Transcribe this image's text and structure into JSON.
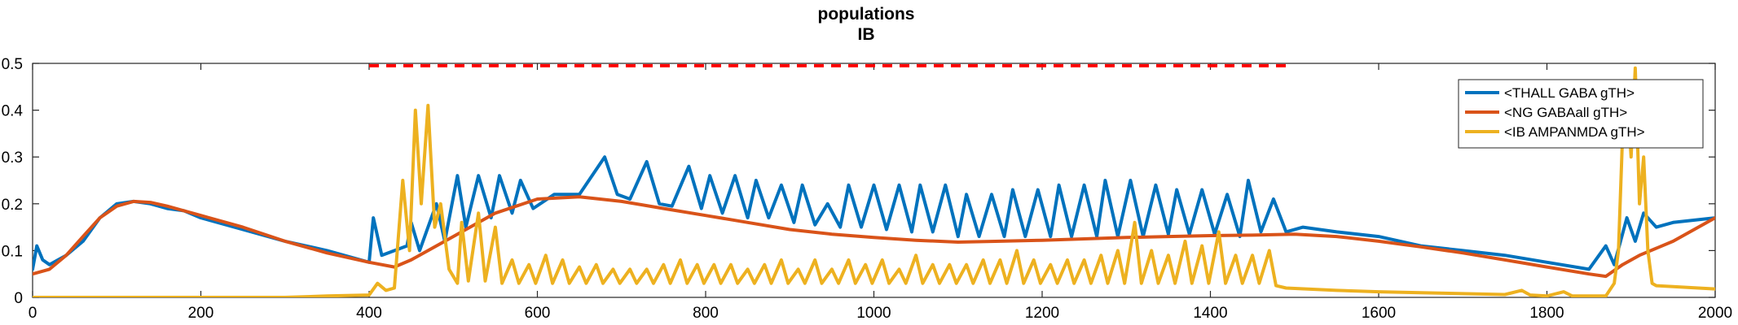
{
  "chart_data": {
    "type": "line",
    "title_lines": [
      "populations",
      "IB"
    ],
    "xlabel": "",
    "ylabel": "",
    "xlim": [
      0,
      2000
    ],
    "ylim": [
      0,
      0.5
    ],
    "xticks": [
      "0",
      "200",
      "400",
      "600",
      "800",
      "1000",
      "1200",
      "1400",
      "1600",
      "1800",
      "2000"
    ],
    "yticks": [
      "0",
      "0.1",
      "0.2",
      "0.3",
      "0.4",
      "0.5"
    ],
    "grid": false,
    "legend_position": "top-right",
    "stimulus_marker": {
      "x": [
        400,
        1490
      ],
      "y": 0.495,
      "color": "#ff0000",
      "style": "dashed"
    },
    "series": [
      {
        "name": "<THALL GABA gTH>",
        "color": "#0072bd",
        "points": [
          [
            0,
            0.06
          ],
          [
            5,
            0.11
          ],
          [
            12,
            0.08
          ],
          [
            20,
            0.07
          ],
          [
            40,
            0.09
          ],
          [
            60,
            0.12
          ],
          [
            80,
            0.17
          ],
          [
            100,
            0.2
          ],
          [
            120,
            0.205
          ],
          [
            140,
            0.2
          ],
          [
            160,
            0.19
          ],
          [
            180,
            0.185
          ],
          [
            200,
            0.17
          ],
          [
            250,
            0.145
          ],
          [
            300,
            0.12
          ],
          [
            350,
            0.1
          ],
          [
            400,
            0.075
          ],
          [
            405,
            0.17
          ],
          [
            415,
            0.09
          ],
          [
            445,
            0.11
          ],
          [
            450,
            0.16
          ],
          [
            460,
            0.1
          ],
          [
            480,
            0.2
          ],
          [
            490,
            0.12
          ],
          [
            505,
            0.26
          ],
          [
            515,
            0.15
          ],
          [
            530,
            0.26
          ],
          [
            545,
            0.17
          ],
          [
            555,
            0.26
          ],
          [
            570,
            0.18
          ],
          [
            580,
            0.25
          ],
          [
            595,
            0.19
          ],
          [
            620,
            0.22
          ],
          [
            650,
            0.22
          ],
          [
            680,
            0.3
          ],
          [
            695,
            0.22
          ],
          [
            710,
            0.21
          ],
          [
            730,
            0.29
          ],
          [
            745,
            0.2
          ],
          [
            760,
            0.195
          ],
          [
            780,
            0.28
          ],
          [
            795,
            0.19
          ],
          [
            805,
            0.26
          ],
          [
            820,
            0.18
          ],
          [
            835,
            0.26
          ],
          [
            850,
            0.17
          ],
          [
            860,
            0.25
          ],
          [
            875,
            0.17
          ],
          [
            890,
            0.24
          ],
          [
            905,
            0.16
          ],
          [
            915,
            0.24
          ],
          [
            930,
            0.155
          ],
          [
            945,
            0.2
          ],
          [
            960,
            0.15
          ],
          [
            970,
            0.24
          ],
          [
            985,
            0.15
          ],
          [
            1000,
            0.24
          ],
          [
            1015,
            0.145
          ],
          [
            1030,
            0.24
          ],
          [
            1045,
            0.14
          ],
          [
            1055,
            0.24
          ],
          [
            1070,
            0.14
          ],
          [
            1085,
            0.24
          ],
          [
            1100,
            0.13
          ],
          [
            1110,
            0.22
          ],
          [
            1125,
            0.13
          ],
          [
            1140,
            0.22
          ],
          [
            1155,
            0.13
          ],
          [
            1165,
            0.23
          ],
          [
            1180,
            0.13
          ],
          [
            1195,
            0.23
          ],
          [
            1210,
            0.13
          ],
          [
            1220,
            0.24
          ],
          [
            1235,
            0.13
          ],
          [
            1250,
            0.24
          ],
          [
            1265,
            0.13
          ],
          [
            1275,
            0.25
          ],
          [
            1290,
            0.13
          ],
          [
            1305,
            0.25
          ],
          [
            1320,
            0.13
          ],
          [
            1335,
            0.24
          ],
          [
            1350,
            0.135
          ],
          [
            1360,
            0.23
          ],
          [
            1375,
            0.135
          ],
          [
            1390,
            0.23
          ],
          [
            1405,
            0.135
          ],
          [
            1420,
            0.22
          ],
          [
            1435,
            0.13
          ],
          [
            1445,
            0.25
          ],
          [
            1460,
            0.14
          ],
          [
            1475,
            0.21
          ],
          [
            1490,
            0.14
          ],
          [
            1510,
            0.15
          ],
          [
            1550,
            0.14
          ],
          [
            1600,
            0.13
          ],
          [
            1650,
            0.11
          ],
          [
            1700,
            0.1
          ],
          [
            1750,
            0.09
          ],
          [
            1800,
            0.075
          ],
          [
            1850,
            0.06
          ],
          [
            1870,
            0.11
          ],
          [
            1880,
            0.07
          ],
          [
            1895,
            0.17
          ],
          [
            1905,
            0.12
          ],
          [
            1915,
            0.18
          ],
          [
            1930,
            0.15
          ],
          [
            1950,
            0.16
          ],
          [
            2000,
            0.17
          ]
        ]
      },
      {
        "name": "<NG GABAall gTH>",
        "color": "#d95319",
        "points": [
          [
            0,
            0.05
          ],
          [
            20,
            0.06
          ],
          [
            40,
            0.09
          ],
          [
            60,
            0.13
          ],
          [
            80,
            0.17
          ],
          [
            100,
            0.195
          ],
          [
            120,
            0.205
          ],
          [
            140,
            0.203
          ],
          [
            160,
            0.195
          ],
          [
            200,
            0.175
          ],
          [
            250,
            0.15
          ],
          [
            300,
            0.12
          ],
          [
            350,
            0.095
          ],
          [
            400,
            0.075
          ],
          [
            430,
            0.065
          ],
          [
            450,
            0.08
          ],
          [
            470,
            0.1
          ],
          [
            500,
            0.13
          ],
          [
            550,
            0.18
          ],
          [
            600,
            0.21
          ],
          [
            650,
            0.215
          ],
          [
            700,
            0.205
          ],
          [
            750,
            0.19
          ],
          [
            800,
            0.175
          ],
          [
            850,
            0.16
          ],
          [
            900,
            0.145
          ],
          [
            950,
            0.135
          ],
          [
            1000,
            0.128
          ],
          [
            1050,
            0.122
          ],
          [
            1100,
            0.118
          ],
          [
            1150,
            0.12
          ],
          [
            1200,
            0.122
          ],
          [
            1250,
            0.125
          ],
          [
            1300,
            0.128
          ],
          [
            1350,
            0.13
          ],
          [
            1400,
            0.132
          ],
          [
            1450,
            0.133
          ],
          [
            1500,
            0.135
          ],
          [
            1550,
            0.13
          ],
          [
            1600,
            0.12
          ],
          [
            1650,
            0.108
          ],
          [
            1700,
            0.095
          ],
          [
            1750,
            0.08
          ],
          [
            1800,
            0.065
          ],
          [
            1850,
            0.05
          ],
          [
            1870,
            0.045
          ],
          [
            1890,
            0.07
          ],
          [
            1910,
            0.09
          ],
          [
            1950,
            0.12
          ],
          [
            1980,
            0.15
          ],
          [
            2000,
            0.17
          ]
        ]
      },
      {
        "name": "<IB AMPANMDA gTH>",
        "color": "#edb120",
        "points": [
          [
            0,
            0.0
          ],
          [
            100,
            0.0
          ],
          [
            200,
            0.0
          ],
          [
            300,
            0.0
          ],
          [
            350,
            0.003
          ],
          [
            400,
            0.005
          ],
          [
            410,
            0.03
          ],
          [
            420,
            0.015
          ],
          [
            430,
            0.02
          ],
          [
            440,
            0.25
          ],
          [
            448,
            0.1
          ],
          [
            455,
            0.4
          ],
          [
            462,
            0.2
          ],
          [
            470,
            0.41
          ],
          [
            478,
            0.15
          ],
          [
            485,
            0.2
          ],
          [
            495,
            0.06
          ],
          [
            505,
            0.03
          ],
          [
            510,
            0.16
          ],
          [
            518,
            0.035
          ],
          [
            530,
            0.18
          ],
          [
            538,
            0.035
          ],
          [
            550,
            0.15
          ],
          [
            558,
            0.03
          ],
          [
            570,
            0.08
          ],
          [
            578,
            0.03
          ],
          [
            590,
            0.07
          ],
          [
            598,
            0.03
          ],
          [
            610,
            0.09
          ],
          [
            618,
            0.03
          ],
          [
            630,
            0.08
          ],
          [
            638,
            0.03
          ],
          [
            650,
            0.065
          ],
          [
            658,
            0.03
          ],
          [
            670,
            0.07
          ],
          [
            678,
            0.03
          ],
          [
            690,
            0.06
          ],
          [
            698,
            0.03
          ],
          [
            710,
            0.06
          ],
          [
            718,
            0.03
          ],
          [
            730,
            0.06
          ],
          [
            738,
            0.03
          ],
          [
            750,
            0.07
          ],
          [
            758,
            0.03
          ],
          [
            770,
            0.08
          ],
          [
            778,
            0.03
          ],
          [
            790,
            0.07
          ],
          [
            798,
            0.03
          ],
          [
            810,
            0.07
          ],
          [
            818,
            0.03
          ],
          [
            830,
            0.07
          ],
          [
            838,
            0.03
          ],
          [
            850,
            0.06
          ],
          [
            858,
            0.03
          ],
          [
            870,
            0.07
          ],
          [
            878,
            0.03
          ],
          [
            890,
            0.08
          ],
          [
            898,
            0.03
          ],
          [
            910,
            0.06
          ],
          [
            918,
            0.03
          ],
          [
            930,
            0.08
          ],
          [
            938,
            0.03
          ],
          [
            950,
            0.06
          ],
          [
            958,
            0.03
          ],
          [
            970,
            0.08
          ],
          [
            978,
            0.03
          ],
          [
            990,
            0.07
          ],
          [
            998,
            0.03
          ],
          [
            1010,
            0.08
          ],
          [
            1018,
            0.03
          ],
          [
            1030,
            0.06
          ],
          [
            1038,
            0.03
          ],
          [
            1050,
            0.09
          ],
          [
            1058,
            0.03
          ],
          [
            1070,
            0.07
          ],
          [
            1078,
            0.03
          ],
          [
            1090,
            0.07
          ],
          [
            1098,
            0.03
          ],
          [
            1110,
            0.07
          ],
          [
            1118,
            0.03
          ],
          [
            1130,
            0.08
          ],
          [
            1138,
            0.03
          ],
          [
            1150,
            0.08
          ],
          [
            1158,
            0.03
          ],
          [
            1170,
            0.1
          ],
          [
            1178,
            0.03
          ],
          [
            1190,
            0.08
          ],
          [
            1198,
            0.03
          ],
          [
            1210,
            0.07
          ],
          [
            1218,
            0.03
          ],
          [
            1230,
            0.08
          ],
          [
            1238,
            0.03
          ],
          [
            1250,
            0.08
          ],
          [
            1258,
            0.03
          ],
          [
            1270,
            0.09
          ],
          [
            1278,
            0.03
          ],
          [
            1290,
            0.1
          ],
          [
            1298,
            0.03
          ],
          [
            1310,
            0.16
          ],
          [
            1318,
            0.03
          ],
          [
            1330,
            0.1
          ],
          [
            1338,
            0.03
          ],
          [
            1350,
            0.09
          ],
          [
            1358,
            0.03
          ],
          [
            1370,
            0.12
          ],
          [
            1378,
            0.03
          ],
          [
            1390,
            0.11
          ],
          [
            1398,
            0.03
          ],
          [
            1410,
            0.14
          ],
          [
            1418,
            0.03
          ],
          [
            1430,
            0.09
          ],
          [
            1438,
            0.03
          ],
          [
            1450,
            0.09
          ],
          [
            1458,
            0.03
          ],
          [
            1470,
            0.1
          ],
          [
            1478,
            0.025
          ],
          [
            1490,
            0.02
          ],
          [
            1550,
            0.015
          ],
          [
            1600,
            0.012
          ],
          [
            1650,
            0.01
          ],
          [
            1700,
            0.008
          ],
          [
            1750,
            0.006
          ],
          [
            1770,
            0.015
          ],
          [
            1780,
            0.005
          ],
          [
            1800,
            0.003
          ],
          [
            1820,
            0.012
          ],
          [
            1830,
            0.003
          ],
          [
            1870,
            0.003
          ],
          [
            1880,
            0.03
          ],
          [
            1885,
            0.1
          ],
          [
            1890,
            0.35
          ],
          [
            1895,
            0.45
          ],
          [
            1900,
            0.3
          ],
          [
            1905,
            0.49
          ],
          [
            1910,
            0.2
          ],
          [
            1915,
            0.3
          ],
          [
            1920,
            0.1
          ],
          [
            1925,
            0.03
          ],
          [
            1930,
            0.025
          ],
          [
            1950,
            0.023
          ],
          [
            1980,
            0.02
          ],
          [
            2000,
            0.018
          ]
        ]
      }
    ]
  }
}
